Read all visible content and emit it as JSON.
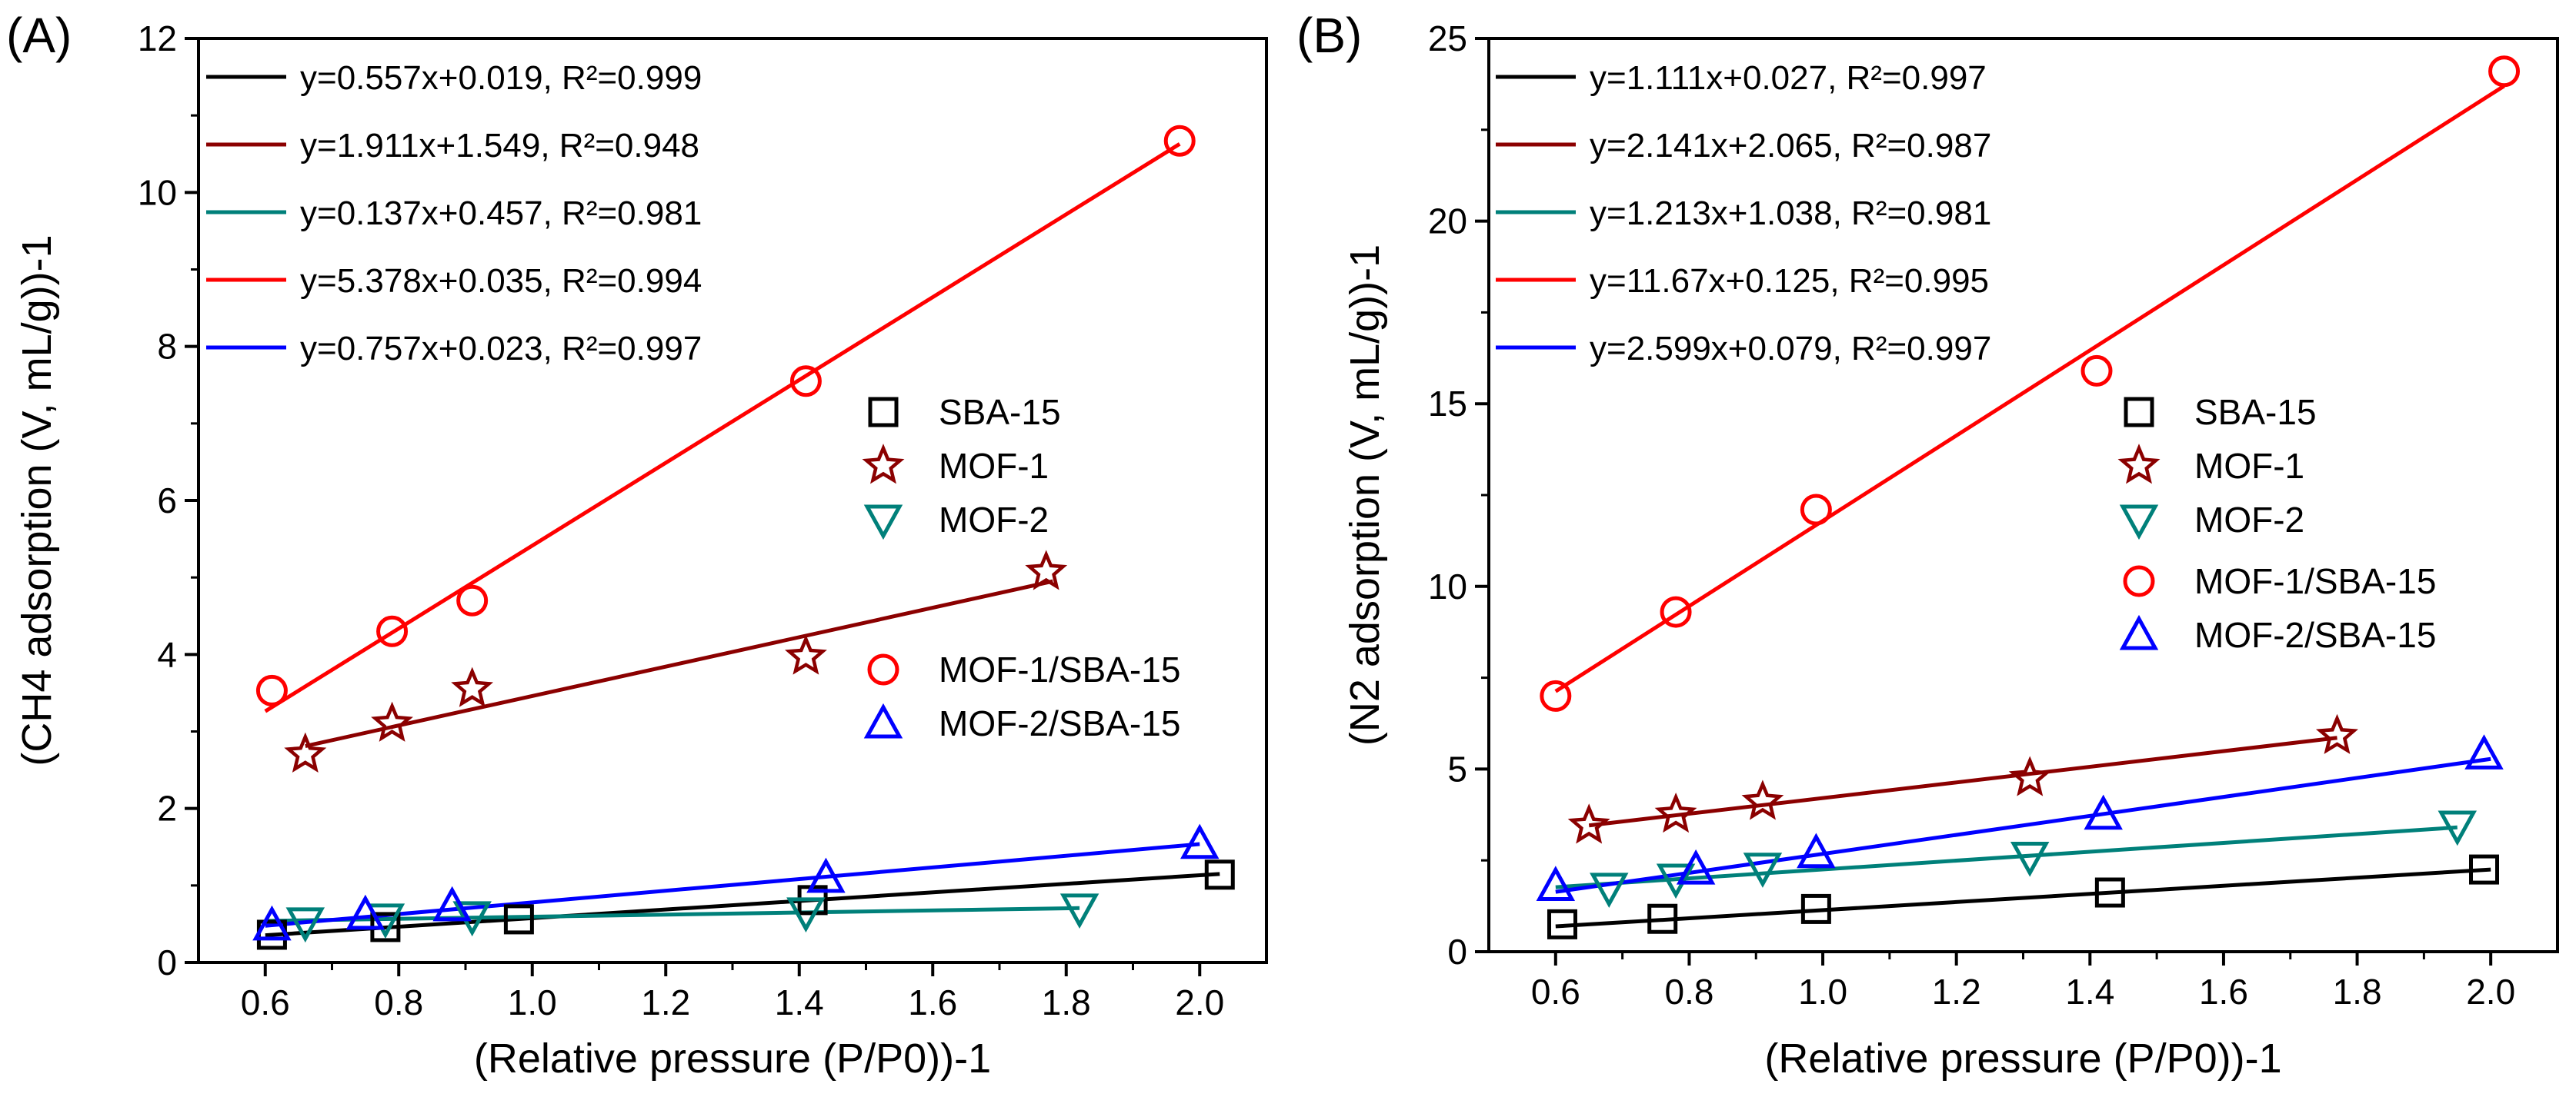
{
  "chart_data": [
    {
      "type": "scatter",
      "panel_label": "(A)",
      "xlabel": "(Relative pressure (P/P0))-1",
      "ylabel": "(CH4 adsorption (V, mL/g))-1",
      "xlim": [
        0.5,
        2.1
      ],
      "ylim": [
        0,
        12
      ],
      "xticks": [
        0.6,
        0.8,
        1.0,
        1.2,
        1.4,
        1.6,
        1.8,
        2.0
      ],
      "yticks": [
        0,
        2,
        4,
        6,
        8,
        10,
        12
      ],
      "xtick_labels": [
        "0.6",
        "0.8",
        "1.0",
        "1.2",
        "1.4",
        "1.6",
        "1.8",
        "2.0"
      ],
      "ytick_labels": [
        "0",
        "2",
        "4",
        "6",
        "8",
        "10",
        "12"
      ],
      "fit_lines": [
        {
          "series": "SBA-15",
          "color": "#000000",
          "equation": "y=0.557x+0.019",
          "r2": "R²=0.999",
          "label": "y=0.557x+0.019, R²=0.999",
          "slope": 0.557,
          "intercept": 0.019,
          "x_range": [
            0.6,
            2.03
          ]
        },
        {
          "series": "MOF-1",
          "color": "#8b0000",
          "equation": "y=1.911x+1.549",
          "r2": "R²=0.948",
          "label": "y=1.911x+1.549, R²=0.948",
          "slope": 1.911,
          "intercept": 1.549,
          "x_range": [
            0.66,
            1.78
          ]
        },
        {
          "series": "MOF-2",
          "color": "#00807a",
          "equation": "y=0.137x+0.457",
          "r2": "R²=0.981",
          "label": "y=0.137x+0.457, R²=0.981",
          "slope": 0.137,
          "intercept": 0.457,
          "x_range": [
            0.6,
            1.82
          ]
        },
        {
          "series": "MOF-1/SBA-15",
          "color": "#ff0000",
          "equation": "y=5.378x+0.035",
          "r2": "R²=0.994",
          "label": "y=5.378x+0.035, R²=0.994",
          "slope": 5.378,
          "intercept": 0.035,
          "x_range": [
            0.6,
            1.97
          ]
        },
        {
          "series": "MOF-2/SBA-15",
          "color": "#0000ff",
          "equation": "y=0.757x+0.023",
          "r2": "R²=0.997",
          "label": "y=0.757x+0.023, R²=0.997",
          "slope": 0.757,
          "intercept": 0.023,
          "x_range": [
            0.6,
            2.0
          ]
        }
      ],
      "series": [
        {
          "name": "SBA-15",
          "marker": "square",
          "color": "#000000",
          "x": [
            0.61,
            0.78,
            0.98,
            1.42,
            2.03
          ],
          "y": [
            0.36,
            0.46,
            0.56,
            0.81,
            1.14
          ]
        },
        {
          "name": "MOF-1",
          "marker": "star",
          "color": "#8b0000",
          "x": [
            0.66,
            0.79,
            0.91,
            1.41,
            1.77
          ],
          "y": [
            2.7,
            3.1,
            3.55,
            3.97,
            5.07
          ]
        },
        {
          "name": "MOF-2",
          "marker": "triangle-down",
          "color": "#00807a",
          "x": [
            0.66,
            0.78,
            0.91,
            1.41,
            1.82
          ],
          "y": [
            0.52,
            0.57,
            0.6,
            0.65,
            0.7
          ]
        },
        {
          "name": "MOF-1/SBA-15",
          "marker": "circle",
          "color": "#ff0000",
          "x": [
            0.61,
            0.79,
            0.91,
            1.41,
            1.97
          ],
          "y": [
            3.53,
            4.3,
            4.7,
            7.55,
            10.67
          ]
        },
        {
          "name": "MOF-2/SBA-15",
          "marker": "triangle-up",
          "color": "#0000ff",
          "x": [
            0.61,
            0.75,
            0.88,
            1.44,
            2.0
          ],
          "y": [
            0.48,
            0.62,
            0.73,
            1.1,
            1.54
          ]
        }
      ]
    },
    {
      "type": "scatter",
      "panel_label": "(B)",
      "xlabel": "(Relative pressure (P/P0))-1",
      "ylabel": "(N2 adsorption (V, mL/g))-1",
      "xlim": [
        0.5,
        2.1
      ],
      "ylim": [
        0,
        25
      ],
      "xticks": [
        0.6,
        0.8,
        1.0,
        1.2,
        1.4,
        1.6,
        1.8,
        2.0
      ],
      "yticks": [
        0,
        5,
        10,
        15,
        20,
        25
      ],
      "xtick_labels": [
        "0.6",
        "0.8",
        "1.0",
        "1.2",
        "1.4",
        "1.6",
        "1.8",
        "2.0"
      ],
      "ytick_labels": [
        "0",
        "5",
        "10",
        "15",
        "20",
        "25"
      ],
      "fit_lines": [
        {
          "series": "SBA-15",
          "color": "#000000",
          "equation": "y=1.111x+0.027",
          "r2": "R²=0.997",
          "label": "y=1.111x+0.027, R²=0.997",
          "slope": 1.111,
          "intercept": 0.027,
          "x_range": [
            0.6,
            2.0
          ]
        },
        {
          "series": "MOF-1",
          "color": "#8b0000",
          "equation": "y=2.141x+2.065",
          "r2": "R²=0.987",
          "label": "y=2.141x+2.065, R²=0.987",
          "slope": 2.141,
          "intercept": 2.065,
          "x_range": [
            0.65,
            1.77
          ]
        },
        {
          "series": "MOF-2",
          "color": "#00807a",
          "equation": "y=1.213x+1.038",
          "r2": "R²=0.981",
          "label": "y=1.213x+1.038, R²=0.981",
          "slope": 1.213,
          "intercept": 1.038,
          "x_range": [
            0.6,
            1.95
          ]
        },
        {
          "series": "MOF-1/SBA-15",
          "color": "#ff0000",
          "equation": "y=11.67x+0.125",
          "r2": "R²=0.995",
          "label": "y=11.67x+0.125, R²=0.995",
          "slope": 11.67,
          "intercept": 0.125,
          "x_range": [
            0.6,
            2.02
          ]
        },
        {
          "series": "MOF-2/SBA-15",
          "color": "#0000ff",
          "equation": "y=2.599x+0.079",
          "r2": "R²=0.997",
          "label": "y=2.599x+0.079, R²=0.997",
          "slope": 2.599,
          "intercept": 0.079,
          "x_range": [
            0.6,
            2.0
          ]
        }
      ],
      "series": [
        {
          "name": "SBA-15",
          "marker": "square",
          "color": "#000000",
          "x": [
            0.61,
            0.76,
            0.99,
            1.43,
            1.99
          ],
          "y": [
            0.75,
            0.9,
            1.17,
            1.62,
            2.25
          ]
        },
        {
          "name": "MOF-1",
          "marker": "star",
          "color": "#8b0000",
          "x": [
            0.65,
            0.78,
            0.91,
            1.31,
            1.77
          ],
          "y": [
            3.45,
            3.75,
            4.1,
            4.75,
            5.9
          ]
        },
        {
          "name": "MOF-2",
          "marker": "triangle-down",
          "color": "#00807a",
          "x": [
            0.68,
            0.78,
            0.91,
            1.31,
            1.95
          ],
          "y": [
            1.75,
            2.0,
            2.3,
            2.6,
            3.45
          ]
        },
        {
          "name": "MOF-1/SBA-15",
          "marker": "circle",
          "color": "#ff0000",
          "x": [
            0.6,
            0.78,
            0.99,
            1.41,
            2.02
          ],
          "y": [
            7.0,
            9.3,
            12.1,
            15.9,
            24.1
          ]
        },
        {
          "name": "MOF-2/SBA-15",
          "marker": "triangle-up",
          "color": "#0000ff",
          "x": [
            0.6,
            0.81,
            0.99,
            1.42,
            1.99
          ],
          "y": [
            1.8,
            2.25,
            2.7,
            3.75,
            5.4
          ]
        }
      ]
    }
  ]
}
